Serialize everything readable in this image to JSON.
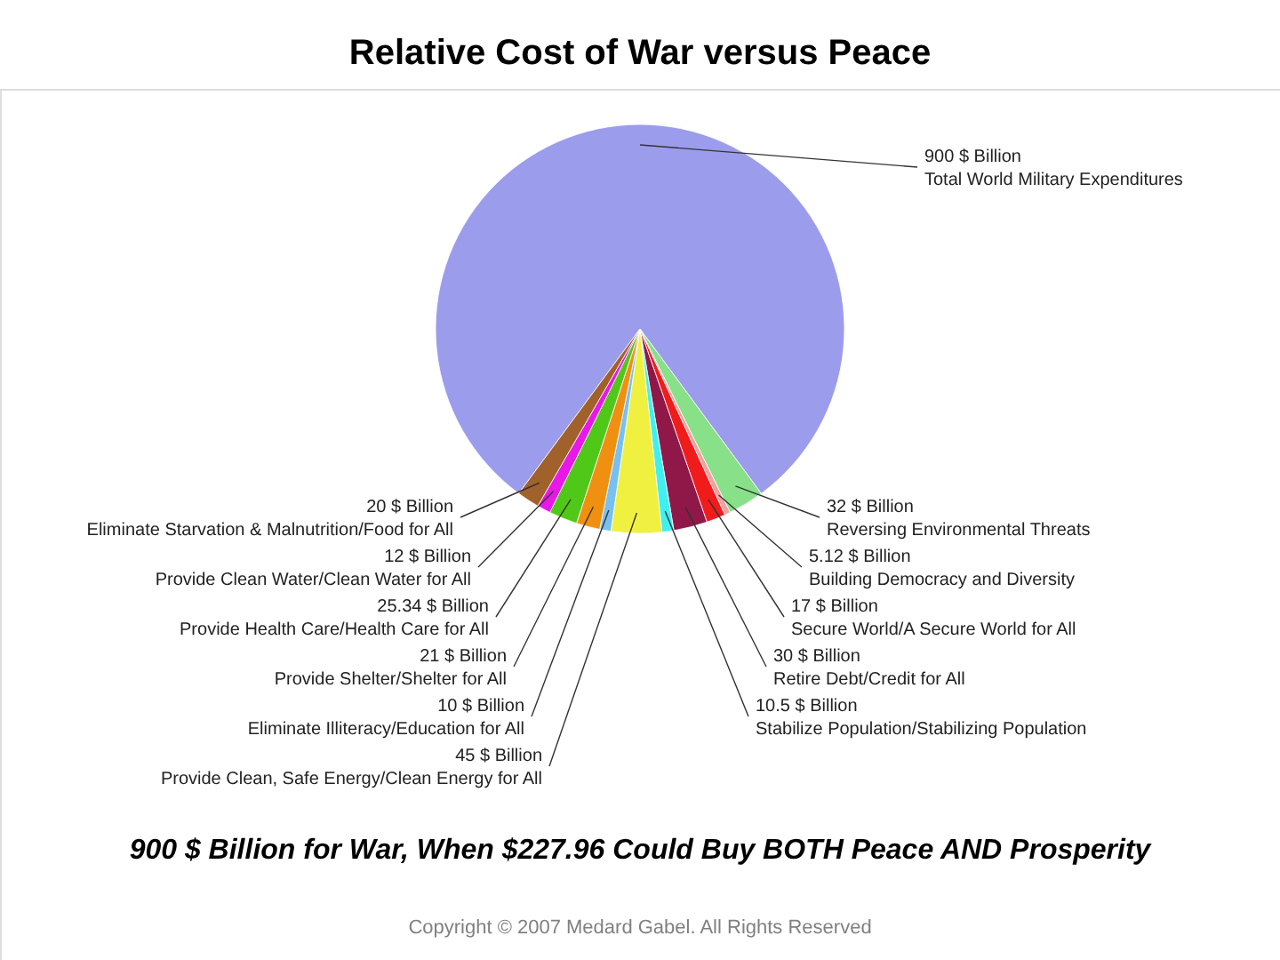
{
  "chart_data": {
    "type": "pie",
    "title": "Relative Cost of War versus Peace",
    "subtitle": "900 $ Billion for War, When $227.96 Could Buy BOTH Peace AND Prosperity",
    "categories": [
      "Total World Military Expenditures",
      "Reversing Environmental Threats",
      "Building Democracy and Diversity",
      "Secure World/A Secure World for All",
      "Retire Debt/Credit for All",
      "Stabilize Population/Stabilizing Population",
      "Provide Clean, Safe Energy/Clean Energy for All",
      "Eliminate Illiteracy/Education for All",
      "Provide Shelter/Shelter for All",
      "Provide Health Care/Health Care for All",
      "Provide Clean Water/Clean Water for All",
      "Eliminate Starvation & Malnutrition/Food for All"
    ],
    "values": [
      900,
      32,
      5.12,
      17,
      30,
      10.5,
      45,
      10,
      21,
      25.34,
      12,
      20
    ],
    "value_labels": [
      "900 $ Billion",
      "32 $ Billion",
      "5.12 $ Billion",
      "17 $ Billion",
      "30 $ Billion",
      "10.5 $ Billion",
      "45 $ Billion",
      "10 $ Billion",
      "21 $ Billion",
      "25.34 $ Billion",
      "12 $ Billion",
      "20 $ Billion"
    ],
    "colors": [
      "#9c9cec",
      "#88e088",
      "#f4a0a0",
      "#f01c1c",
      "#901848",
      "#40f0f0",
      "#f0f040",
      "#78c0f0",
      "#f09010",
      "#50c818",
      "#e818e8",
      "#a0622a"
    ],
    "annotations": [
      "Copyright © 2007 Medard Gabel. All Rights Reserved"
    ]
  }
}
